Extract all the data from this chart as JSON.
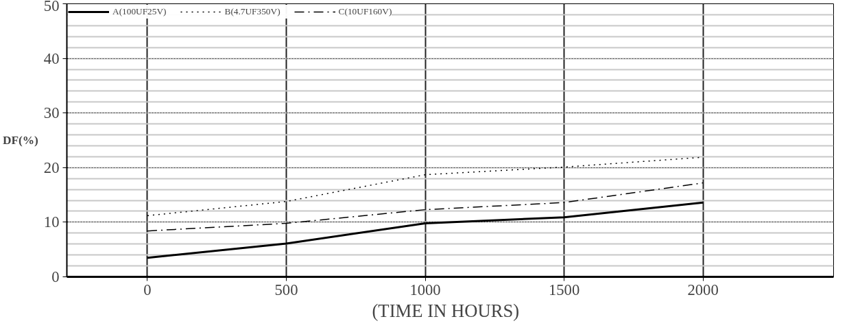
{
  "chart_data": {
    "type": "line",
    "xlabel": "(TIME   IN HOURS)",
    "ylabel": "DF(%)",
    "x": [
      0,
      500,
      1000,
      1500,
      2000
    ],
    "series": [
      {
        "name": "A(100UF25V)",
        "color": "#000000",
        "line_style": "solid",
        "values": [
          3.5,
          6.1,
          9.8,
          10.9,
          13.6
        ]
      },
      {
        "name": "B(4.7UF350V)",
        "color": "#000000",
        "line_style": "dotted",
        "values": [
          11.2,
          13.8,
          18.7,
          20.1,
          21.9
        ]
      },
      {
        "name": "C(10UF160V)",
        "color": "#000000",
        "line_style": "dashdot",
        "values": [
          8.4,
          9.8,
          12.3,
          13.6,
          17.2
        ]
      }
    ],
    "xlim": [
      -290,
      2470
    ],
    "ylim": [
      0,
      50
    ],
    "xticks": [
      0,
      500,
      1000,
      1500,
      2000
    ],
    "yticks": [
      0,
      10,
      20,
      30,
      40,
      50
    ],
    "grid": true,
    "legend": "top left",
    "marker": "none"
  }
}
